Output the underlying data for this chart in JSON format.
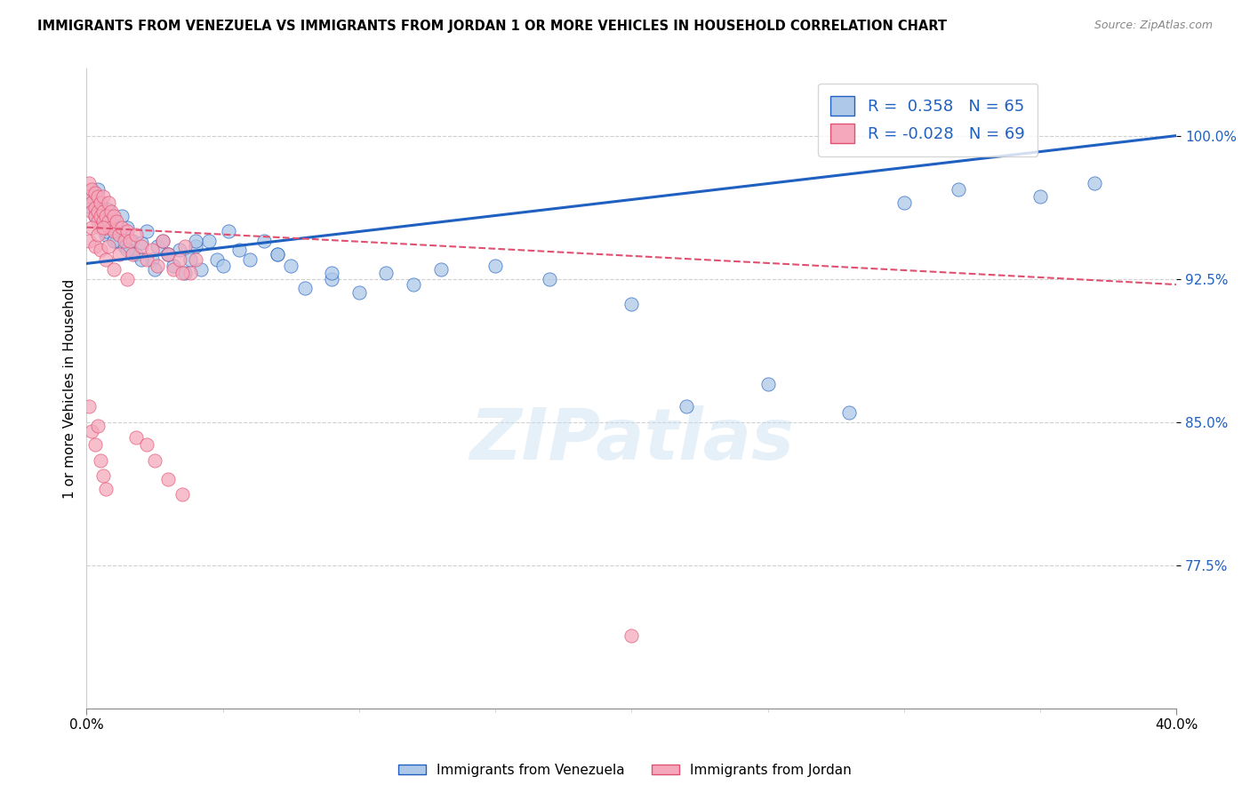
{
  "title": "IMMIGRANTS FROM VENEZUELA VS IMMIGRANTS FROM JORDAN 1 OR MORE VEHICLES IN HOUSEHOLD CORRELATION CHART",
  "source": "Source: ZipAtlas.com",
  "ylabel": "1 or more Vehicles in Household",
  "xlim": [
    0.0,
    0.4
  ],
  "ylim": [
    0.7,
    1.035
  ],
  "r_venezuela": 0.358,
  "n_venezuela": 65,
  "r_jordan": -0.028,
  "n_jordan": 69,
  "legend_label_venezuela": "Immigrants from Venezuela",
  "legend_label_jordan": "Immigrants from Jordan",
  "color_venezuela": "#adc8e8",
  "color_jordan": "#f5a8bc",
  "trendline_venezuela_color": "#2060c0",
  "trendline_jordan_color": "#e05070",
  "background_color": "#ffffff",
  "venezuela_x": [
    0.001,
    0.002,
    0.003,
    0.004,
    0.005,
    0.006,
    0.007,
    0.008,
    0.009,
    0.01,
    0.011,
    0.012,
    0.013,
    0.014,
    0.015,
    0.016,
    0.017,
    0.018,
    0.02,
    0.022,
    0.024,
    0.026,
    0.028,
    0.03,
    0.032,
    0.034,
    0.036,
    0.038,
    0.04,
    0.042,
    0.045,
    0.048,
    0.052,
    0.056,
    0.06,
    0.065,
    0.07,
    0.075,
    0.08,
    0.09,
    0.1,
    0.11,
    0.12,
    0.13,
    0.15,
    0.17,
    0.2,
    0.22,
    0.25,
    0.28,
    0.3,
    0.32,
    0.35,
    0.37,
    0.004,
    0.007,
    0.01,
    0.015,
    0.02,
    0.025,
    0.03,
    0.04,
    0.05,
    0.07,
    0.09
  ],
  "venezuela_y": [
    0.963,
    0.968,
    0.958,
    0.972,
    0.965,
    0.955,
    0.948,
    0.961,
    0.955,
    0.95,
    0.945,
    0.948,
    0.958,
    0.942,
    0.952,
    0.94,
    0.945,
    0.938,
    0.944,
    0.95,
    0.935,
    0.942,
    0.945,
    0.938,
    0.932,
    0.94,
    0.928,
    0.935,
    0.942,
    0.93,
    0.945,
    0.935,
    0.95,
    0.94,
    0.935,
    0.945,
    0.938,
    0.932,
    0.92,
    0.925,
    0.918,
    0.928,
    0.922,
    0.93,
    0.932,
    0.925,
    0.912,
    0.858,
    0.87,
    0.855,
    0.965,
    0.972,
    0.968,
    0.975,
    0.96,
    0.95,
    0.945,
    0.94,
    0.935,
    0.93,
    0.938,
    0.945,
    0.932,
    0.938,
    0.928
  ],
  "jordan_x": [
    0.001,
    0.001,
    0.002,
    0.002,
    0.002,
    0.003,
    0.003,
    0.003,
    0.004,
    0.004,
    0.004,
    0.005,
    0.005,
    0.005,
    0.006,
    0.006,
    0.006,
    0.007,
    0.007,
    0.008,
    0.008,
    0.009,
    0.009,
    0.01,
    0.01,
    0.011,
    0.012,
    0.013,
    0.014,
    0.015,
    0.016,
    0.017,
    0.018,
    0.02,
    0.022,
    0.024,
    0.026,
    0.028,
    0.03,
    0.032,
    0.034,
    0.036,
    0.038,
    0.04,
    0.001,
    0.002,
    0.003,
    0.004,
    0.005,
    0.006,
    0.007,
    0.008,
    0.01,
    0.012,
    0.015,
    0.018,
    0.022,
    0.025,
    0.03,
    0.035,
    0.001,
    0.002,
    0.003,
    0.004,
    0.005,
    0.006,
    0.007,
    0.035,
    0.2
  ],
  "jordan_y": [
    0.975,
    0.968,
    0.972,
    0.965,
    0.96,
    0.97,
    0.962,
    0.958,
    0.968,
    0.96,
    0.955,
    0.965,
    0.958,
    0.952,
    0.968,
    0.96,
    0.955,
    0.958,
    0.952,
    0.965,
    0.955,
    0.96,
    0.952,
    0.958,
    0.95,
    0.955,
    0.948,
    0.952,
    0.945,
    0.95,
    0.945,
    0.938,
    0.948,
    0.942,
    0.935,
    0.94,
    0.932,
    0.945,
    0.938,
    0.93,
    0.935,
    0.942,
    0.928,
    0.935,
    0.945,
    0.952,
    0.942,
    0.948,
    0.94,
    0.952,
    0.935,
    0.942,
    0.93,
    0.938,
    0.925,
    0.842,
    0.838,
    0.83,
    0.82,
    0.812,
    0.858,
    0.845,
    0.838,
    0.848,
    0.83,
    0.822,
    0.815,
    0.928,
    0.738
  ]
}
